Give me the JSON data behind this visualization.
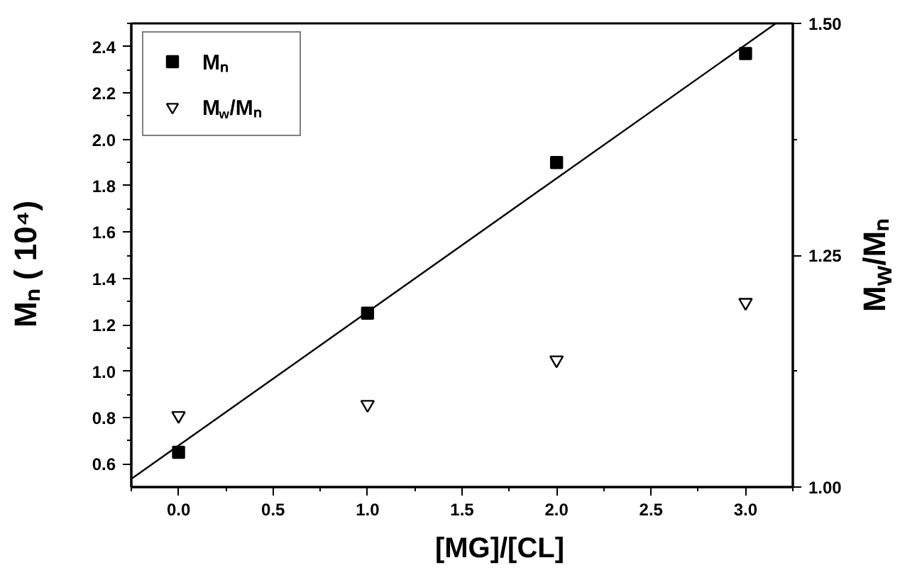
{
  "chart_data": {
    "type": "scatter",
    "xlabel": "[MG]/[CL]",
    "ylabel": "Mₙ ( 10⁴)",
    "y2label": "M$_{w}$/Mₙ",
    "x": [
      0,
      1,
      2,
      3
    ],
    "xlim": [
      -0.25,
      3.25
    ],
    "xticks": [
      {
        "value": 0,
        "label": "0.0"
      },
      0.5,
      {
        "value": 1,
        "label": "1.0"
      },
      1.5,
      {
        "value": 2,
        "label": "2.0"
      },
      2.5,
      {
        "value": 3,
        "label": "3.0"
      }
    ],
    "ylim": [
      0.5,
      2.5
    ],
    "yticks": [
      0.6,
      0.8,
      {
        "value": 1,
        "label": "1.0"
      },
      1.2,
      1.4,
      1.6,
      1.8,
      {
        "value": 2,
        "label": "2.0"
      },
      2.2,
      2.4
    ],
    "y2lim": [
      1.0,
      1.5
    ],
    "y2ticks": [
      {
        "value": 1,
        "label": "1.00"
      },
      1.25,
      {
        "value": 1.5,
        "label": "1.50"
      }
    ],
    "legend": "top left",
    "grid": false,
    "series": [
      {
        "name": "Mₙ",
        "color": "#000000",
        "marker": "square",
        "values": [
          0.65,
          1.25,
          1.9,
          2.37
        ]
      },
      {
        "name": "M$_{w}$/Mₙ",
        "color": "#000000",
        "marker": "triangle",
        "axis": "y2",
        "values": [
          1.077,
          1.089,
          1.137,
          1.199
        ]
      },
      {
        "type": "line",
        "color": "#000000",
        "marker": "none",
        "x": [
          -0.25,
          3.16
        ],
        "values": [
          0.535,
          2.5
        ]
      }
    ]
  }
}
